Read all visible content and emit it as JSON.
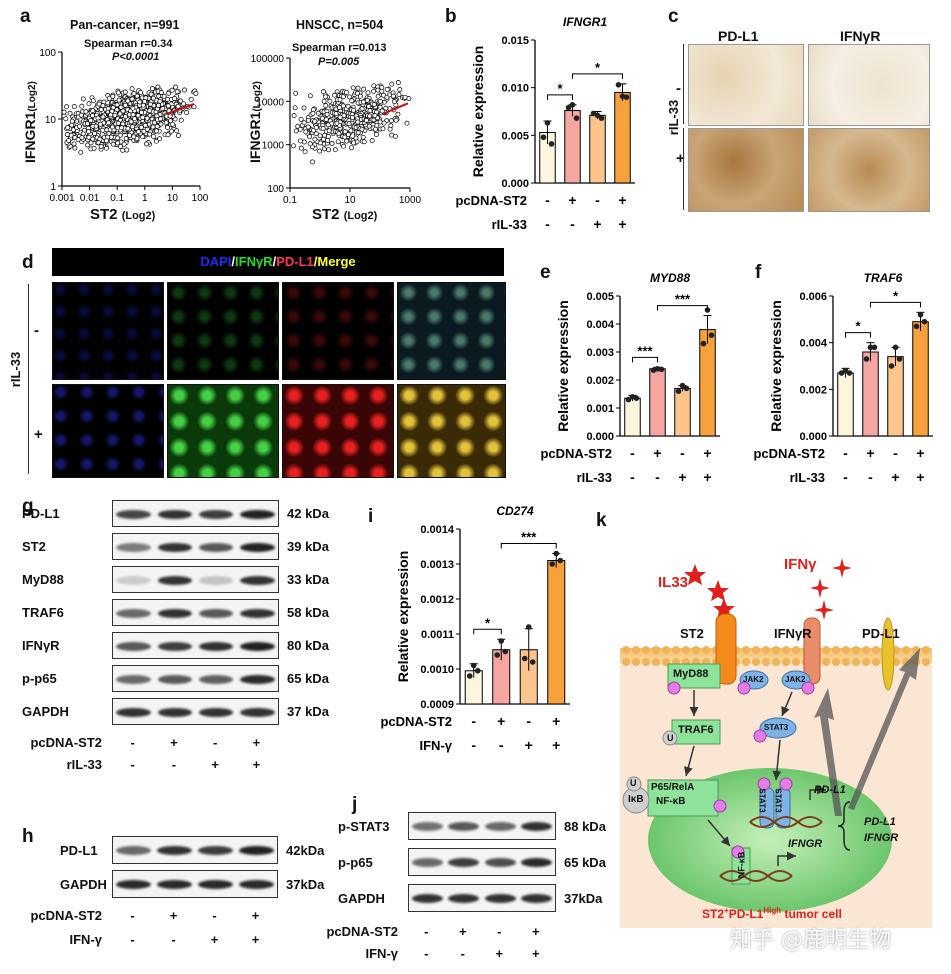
{
  "panels": {
    "a": "a",
    "b": "b",
    "c": "c",
    "d": "d",
    "e": "e",
    "f": "f",
    "g": "g",
    "h": "h",
    "i": "i",
    "j": "j",
    "k": "k"
  },
  "panel_a": {
    "plot1": {
      "title": "Pan-cancer, n=991",
      "stat1": "Spearman r=0.34",
      "stat2": "P<0.0001",
      "ylabel": "IFNGR1",
      "ysub": "(Log2)",
      "xlabel": "ST2",
      "xsub": "(Log2)",
      "yticks": [
        "1",
        "10",
        "100"
      ],
      "xticks": [
        "0.001",
        "0.01",
        "0.1",
        "1",
        "10",
        "100"
      ]
    },
    "plot2": {
      "title": "HNSCC, n=504",
      "stat1": "Spearman r=0.013",
      "stat2": "P=0.005",
      "ylabel": "IFNGR1",
      "ysub": "(Log2)",
      "xlabel": "ST2",
      "xsub": "(Log2)",
      "yticks": [
        "100",
        "1000",
        "10000",
        "100000"
      ],
      "xticks": [
        "0.1",
        "10",
        "1000"
      ]
    }
  },
  "chart_data": [
    {
      "id": "b",
      "type": "bar",
      "title": "IFNGR1",
      "ylabel": "Relative expression",
      "ylim": [
        0,
        0.015
      ],
      "yticks": [
        "0.000",
        "0.005",
        "0.010",
        "0.015"
      ],
      "categories": [
        "1",
        "2",
        "3",
        "4"
      ],
      "values": [
        0.0053,
        0.0076,
        0.0071,
        0.0095
      ],
      "errors": [
        0.0012,
        0.0006,
        0.0004,
        0.0009
      ],
      "points": [
        [
          0.0048,
          0.0063,
          0.0041
        ],
        [
          0.0079,
          0.0082,
          0.0068
        ],
        [
          0.0073,
          0.0071,
          0.0068
        ],
        [
          0.0103,
          0.0091,
          0.009
        ]
      ],
      "sig": [
        {
          "from": 0,
          "to": 1,
          "label": "*"
        },
        {
          "from": 1,
          "to": 3,
          "label": "*"
        }
      ],
      "rows": [
        {
          "label": "pcDNA-ST2",
          "signs": [
            "-",
            "+",
            "-",
            "+"
          ]
        },
        {
          "label": "rIL-33",
          "signs": [
            "-",
            "-",
            "+",
            "+"
          ]
        }
      ]
    },
    {
      "id": "e",
      "type": "bar",
      "title": "MYD88",
      "ylabel": "Relative expression",
      "ylim": [
        0,
        0.005
      ],
      "yticks": [
        "0.000",
        "0.001",
        "0.002",
        "0.003",
        "0.004",
        "0.005"
      ],
      "categories": [
        "1",
        "2",
        "3",
        "4"
      ],
      "values": [
        0.00135,
        0.0024,
        0.0017,
        0.0038
      ],
      "errors": [
        0.0001,
        5e-05,
        0.0001,
        0.0005
      ],
      "points": [
        [
          0.0013,
          0.0014,
          0.00135
        ],
        [
          0.00235,
          0.0024,
          0.00238
        ],
        [
          0.0016,
          0.0018,
          0.0017
        ],
        [
          0.0033,
          0.0045,
          0.0036
        ]
      ],
      "sig": [
        {
          "from": 0,
          "to": 1,
          "label": "***"
        },
        {
          "from": 1,
          "to": 3,
          "label": "***"
        }
      ],
      "rows": [
        {
          "label": "pcDNA-ST2",
          "signs": [
            "-",
            "+",
            "-",
            "+"
          ]
        },
        {
          "label": "rIL-33",
          "signs": [
            "-",
            "-",
            "+",
            "+"
          ]
        }
      ]
    },
    {
      "id": "f",
      "type": "bar",
      "title": "TRAF6",
      "ylabel": "Relative expression",
      "ylim": [
        0,
        0.006
      ],
      "yticks": [
        "0.000",
        "0.002",
        "0.004",
        "0.006"
      ],
      "categories": [
        "1",
        "2",
        "3",
        "4"
      ],
      "values": [
        0.0027,
        0.0036,
        0.0034,
        0.0049
      ],
      "errors": [
        0.0002,
        0.0004,
        0.0004,
        0.0004
      ],
      "points": [
        [
          0.0027,
          0.0028,
          0.0027
        ],
        [
          0.0033,
          0.0038,
          0.0038
        ],
        [
          0.003,
          0.0038,
          0.0033
        ],
        [
          0.0047,
          0.0052,
          0.0049
        ]
      ],
      "sig": [
        {
          "from": 0,
          "to": 1,
          "label": "*"
        },
        {
          "from": 1,
          "to": 3,
          "label": "*"
        }
      ],
      "rows": [
        {
          "label": "pcDNA-ST2",
          "signs": [
            "-",
            "+",
            "-",
            "+"
          ]
        },
        {
          "label": "rIL-33",
          "signs": [
            "-",
            "-",
            "+",
            "+"
          ]
        }
      ]
    },
    {
      "id": "i",
      "type": "bar",
      "title": "CD274",
      "ylabel": "Relative expression",
      "ylim": [
        0.0009,
        0.0014
      ],
      "yticks": [
        "0.0009",
        "0.0010",
        "0.0011",
        "0.0012",
        "0.0013",
        "0.0014"
      ],
      "categories": [
        "1",
        "2",
        "3",
        "4"
      ],
      "values": [
        0.000995,
        0.001055,
        0.001055,
        0.00131
      ],
      "errors": [
        2e-05,
        3e-05,
        6e-05,
        2e-05
      ],
      "points": [
        [
          0.00098,
          0.00101,
          0.000995
        ],
        [
          0.00104,
          0.00108,
          0.00105
        ],
        [
          0.00103,
          0.00112,
          0.00102
        ],
        [
          0.0013,
          0.00133,
          0.00131
        ]
      ],
      "sig": [
        {
          "from": 0,
          "to": 1,
          "label": "*"
        },
        {
          "from": 1,
          "to": 3,
          "label": "***"
        }
      ],
      "rows": [
        {
          "label": "pcDNA-ST2",
          "signs": [
            "-",
            "+",
            "-",
            "+"
          ]
        },
        {
          "label": "IFN-γ",
          "signs": [
            "-",
            "-",
            "+",
            "+"
          ]
        }
      ]
    }
  ],
  "panel_c": {
    "col1": "PD-L1",
    "col2": "IFNγR",
    "row_label": "rIL-33",
    "row_minus": "-",
    "row_plus": "+"
  },
  "panel_d": {
    "header": [
      {
        "text": "DAPI",
        "color": "#2424ff"
      },
      {
        "text": "/",
        "color": "#ffffff"
      },
      {
        "text": "IFNγR",
        "color": "#22dd22"
      },
      {
        "text": "/",
        "color": "#ffffff"
      },
      {
        "text": "PD-L1",
        "color": "#ff3355"
      },
      {
        "text": "/Merge",
        "color": "#ffff33"
      }
    ],
    "row_label": "rIL-33",
    "row_minus": "-",
    "row_plus": "+"
  },
  "panel_g": {
    "bands": [
      {
        "label": "PD-L1",
        "kda": "42 kDa",
        "intensity": [
          0.8,
          0.9,
          0.85,
          1.0
        ]
      },
      {
        "label": "ST2",
        "kda": "39 kDa",
        "intensity": [
          0.5,
          0.9,
          0.7,
          1.0
        ]
      },
      {
        "label": "MyD88",
        "kda": "33 kDa",
        "intensity": [
          0.05,
          0.9,
          0.1,
          0.9
        ]
      },
      {
        "label": "TRAF6",
        "kda": "58 kDa",
        "intensity": [
          0.6,
          0.9,
          0.7,
          0.9
        ]
      },
      {
        "label": "IFNγR",
        "kda": "80 kDa",
        "intensity": [
          0.7,
          0.85,
          0.9,
          1.0
        ]
      },
      {
        "label": "p-p65",
        "kda": "65 kDa",
        "intensity": [
          0.6,
          0.7,
          0.65,
          0.95
        ]
      },
      {
        "label": "GAPDH",
        "kda": "37 kDa",
        "intensity": [
          0.9,
          0.9,
          0.9,
          0.9
        ]
      }
    ],
    "rows": [
      {
        "label": "pcDNA-ST2",
        "signs": [
          "-",
          "+",
          "-",
          "+"
        ]
      },
      {
        "label": "rIL-33",
        "signs": [
          "-",
          "-",
          "+",
          "+"
        ]
      }
    ]
  },
  "panel_h": {
    "bands": [
      {
        "label": "PD-L1",
        "kda": "42kDa",
        "intensity": [
          0.6,
          0.9,
          0.85,
          1.0
        ]
      },
      {
        "label": "GAPDH",
        "kda": "37kDa",
        "intensity": [
          0.95,
          0.95,
          0.95,
          0.95
        ]
      }
    ],
    "rows": [
      {
        "label": "pcDNA-ST2",
        "signs": [
          "-",
          "+",
          "-",
          "+"
        ]
      },
      {
        "label": "IFN-γ",
        "signs": [
          "-",
          "-",
          "+",
          "+"
        ]
      }
    ]
  },
  "panel_j": {
    "bands": [
      {
        "label": "p-STAT3",
        "kda": "88 kDa",
        "intensity": [
          0.55,
          0.7,
          0.6,
          0.9
        ]
      },
      {
        "label": "p-p65",
        "kda": "65 kDa",
        "intensity": [
          0.6,
          0.85,
          0.75,
          0.95
        ]
      },
      {
        "label": "GAPDH",
        "kda": "37kDa",
        "intensity": [
          0.9,
          0.9,
          0.9,
          0.9
        ]
      }
    ],
    "rows": [
      {
        "label": "pcDNA-ST2",
        "signs": [
          "-",
          "+",
          "-",
          "+"
        ]
      },
      {
        "label": "IFN-γ",
        "signs": [
          "-",
          "-",
          "+",
          "+"
        ]
      }
    ]
  },
  "panel_k": {
    "il33": "IL33",
    "ifng": "IFNγ",
    "st2": "ST2",
    "ifngr": "IFNγR",
    "pdl1": "PD-L1",
    "myd88": "MyD88",
    "traf6": "TRAF6",
    "jak2": "JAK2",
    "stat3": "STAT3",
    "p65": "P65/RelA",
    "nfkb": "NF-κB",
    "ikb": "IκB",
    "u": "U",
    "p": "P",
    "gene1": "PD-L1",
    "gene2": "IFNGR",
    "brace1": "PD-L1",
    "brace2": "IFNGR",
    "cell_prefix": "ST2",
    "cell_sup1": "+",
    "cell_mid": "PD-L1",
    "cell_sup2": "High",
    "cell_suffix": " tumor cell"
  },
  "watermark": "知乎 @鹿明生物",
  "colors": {
    "bar1": "#fdf6de",
    "bar2": "#f6a6a0",
    "bar3": "#fcc58e",
    "bar4": "#f7a13c",
    "red": "#e0201c",
    "cell_bg": "#fbe6d3",
    "nucleus": "#7bd07f"
  }
}
